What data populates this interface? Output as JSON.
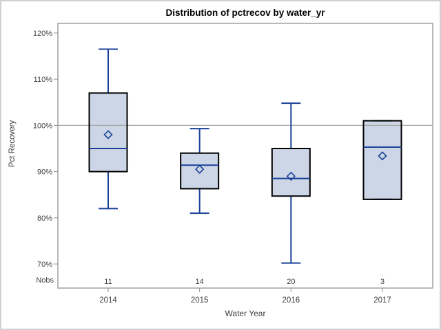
{
  "chart_data": {
    "type": "boxplot",
    "title": "Distribution of pctrecov by water_yr",
    "xlabel": "Water Year",
    "ylabel": "Pct Recovery",
    "categories": [
      "2014",
      "2015",
      "2016",
      "2017"
    ],
    "nobs_label": "Nobs",
    "nobs": [
      "11",
      "14",
      "20",
      "3"
    ],
    "yticks": [
      120,
      110,
      100,
      90,
      80,
      70
    ],
    "ytick_suffix": "%",
    "ylim": [
      64.7,
      122.1
    ],
    "reference_line": 100,
    "legend": "none",
    "grid": false,
    "series": [
      {
        "category": "2014",
        "min": 82,
        "q1": 90,
        "median": 95,
        "q3": 107,
        "max": 116.5,
        "mean": 98
      },
      {
        "category": "2015",
        "min": 81,
        "q1": 86.3,
        "median": 91.4,
        "q3": 94,
        "max": 99.3,
        "mean": 90.5
      },
      {
        "category": "2016",
        "min": 70.2,
        "q1": 84.7,
        "median": 88.5,
        "q3": 95,
        "max": 104.8,
        "mean": 89
      },
      {
        "category": "2017",
        "min": 84,
        "q1": 84,
        "median": 95.3,
        "q3": 101,
        "max": 101,
        "mean": 93.4
      }
    ],
    "colors": {
      "box_fill": "#ccd6e6",
      "box_stroke": "#000000",
      "stat_line": "#1a4198",
      "reference_line": "#a8a8a8",
      "axis_line": "#8f9194",
      "text": "#3d3d3d",
      "title_color": "#000000"
    }
  }
}
